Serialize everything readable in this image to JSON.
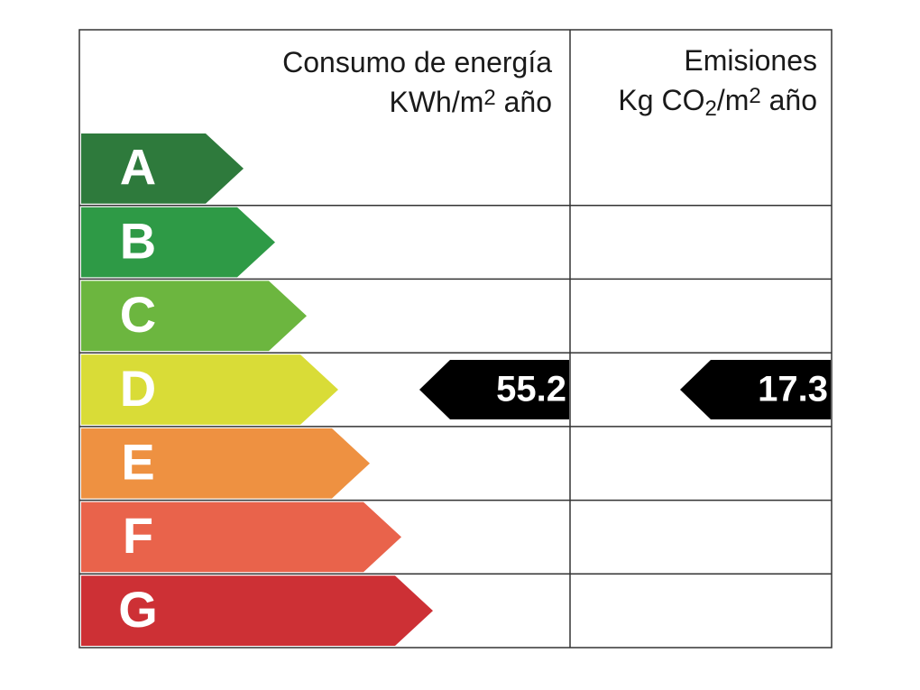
{
  "header": {
    "consumption_title": "Consumo de energía",
    "consumption_unit": [
      {
        "text": "KWh/m"
      },
      {
        "text": "2",
        "shift": "sup"
      },
      {
        "text": " año"
      }
    ],
    "emissions_title": "Emisiones",
    "emissions_unit": [
      {
        "text": "Kg CO"
      },
      {
        "text": "2",
        "shift": "sub"
      },
      {
        "text": "/m"
      },
      {
        "text": "2",
        "shift": "sup"
      },
      {
        "text": " año"
      }
    ]
  },
  "rows": [
    {
      "letter": "A",
      "color": "#2e7a3c"
    },
    {
      "letter": "B",
      "color": "#2e9a46"
    },
    {
      "letter": "C",
      "color": "#6cb63f"
    },
    {
      "letter": "D",
      "color": "#d9dc37",
      "consumption": 55.2,
      "emissions": 17.3
    },
    {
      "letter": "E",
      "color": "#ee9141"
    },
    {
      "letter": "F",
      "color": "#e9634b"
    },
    {
      "letter": "G",
      "color": "#cd3035"
    }
  ]
}
